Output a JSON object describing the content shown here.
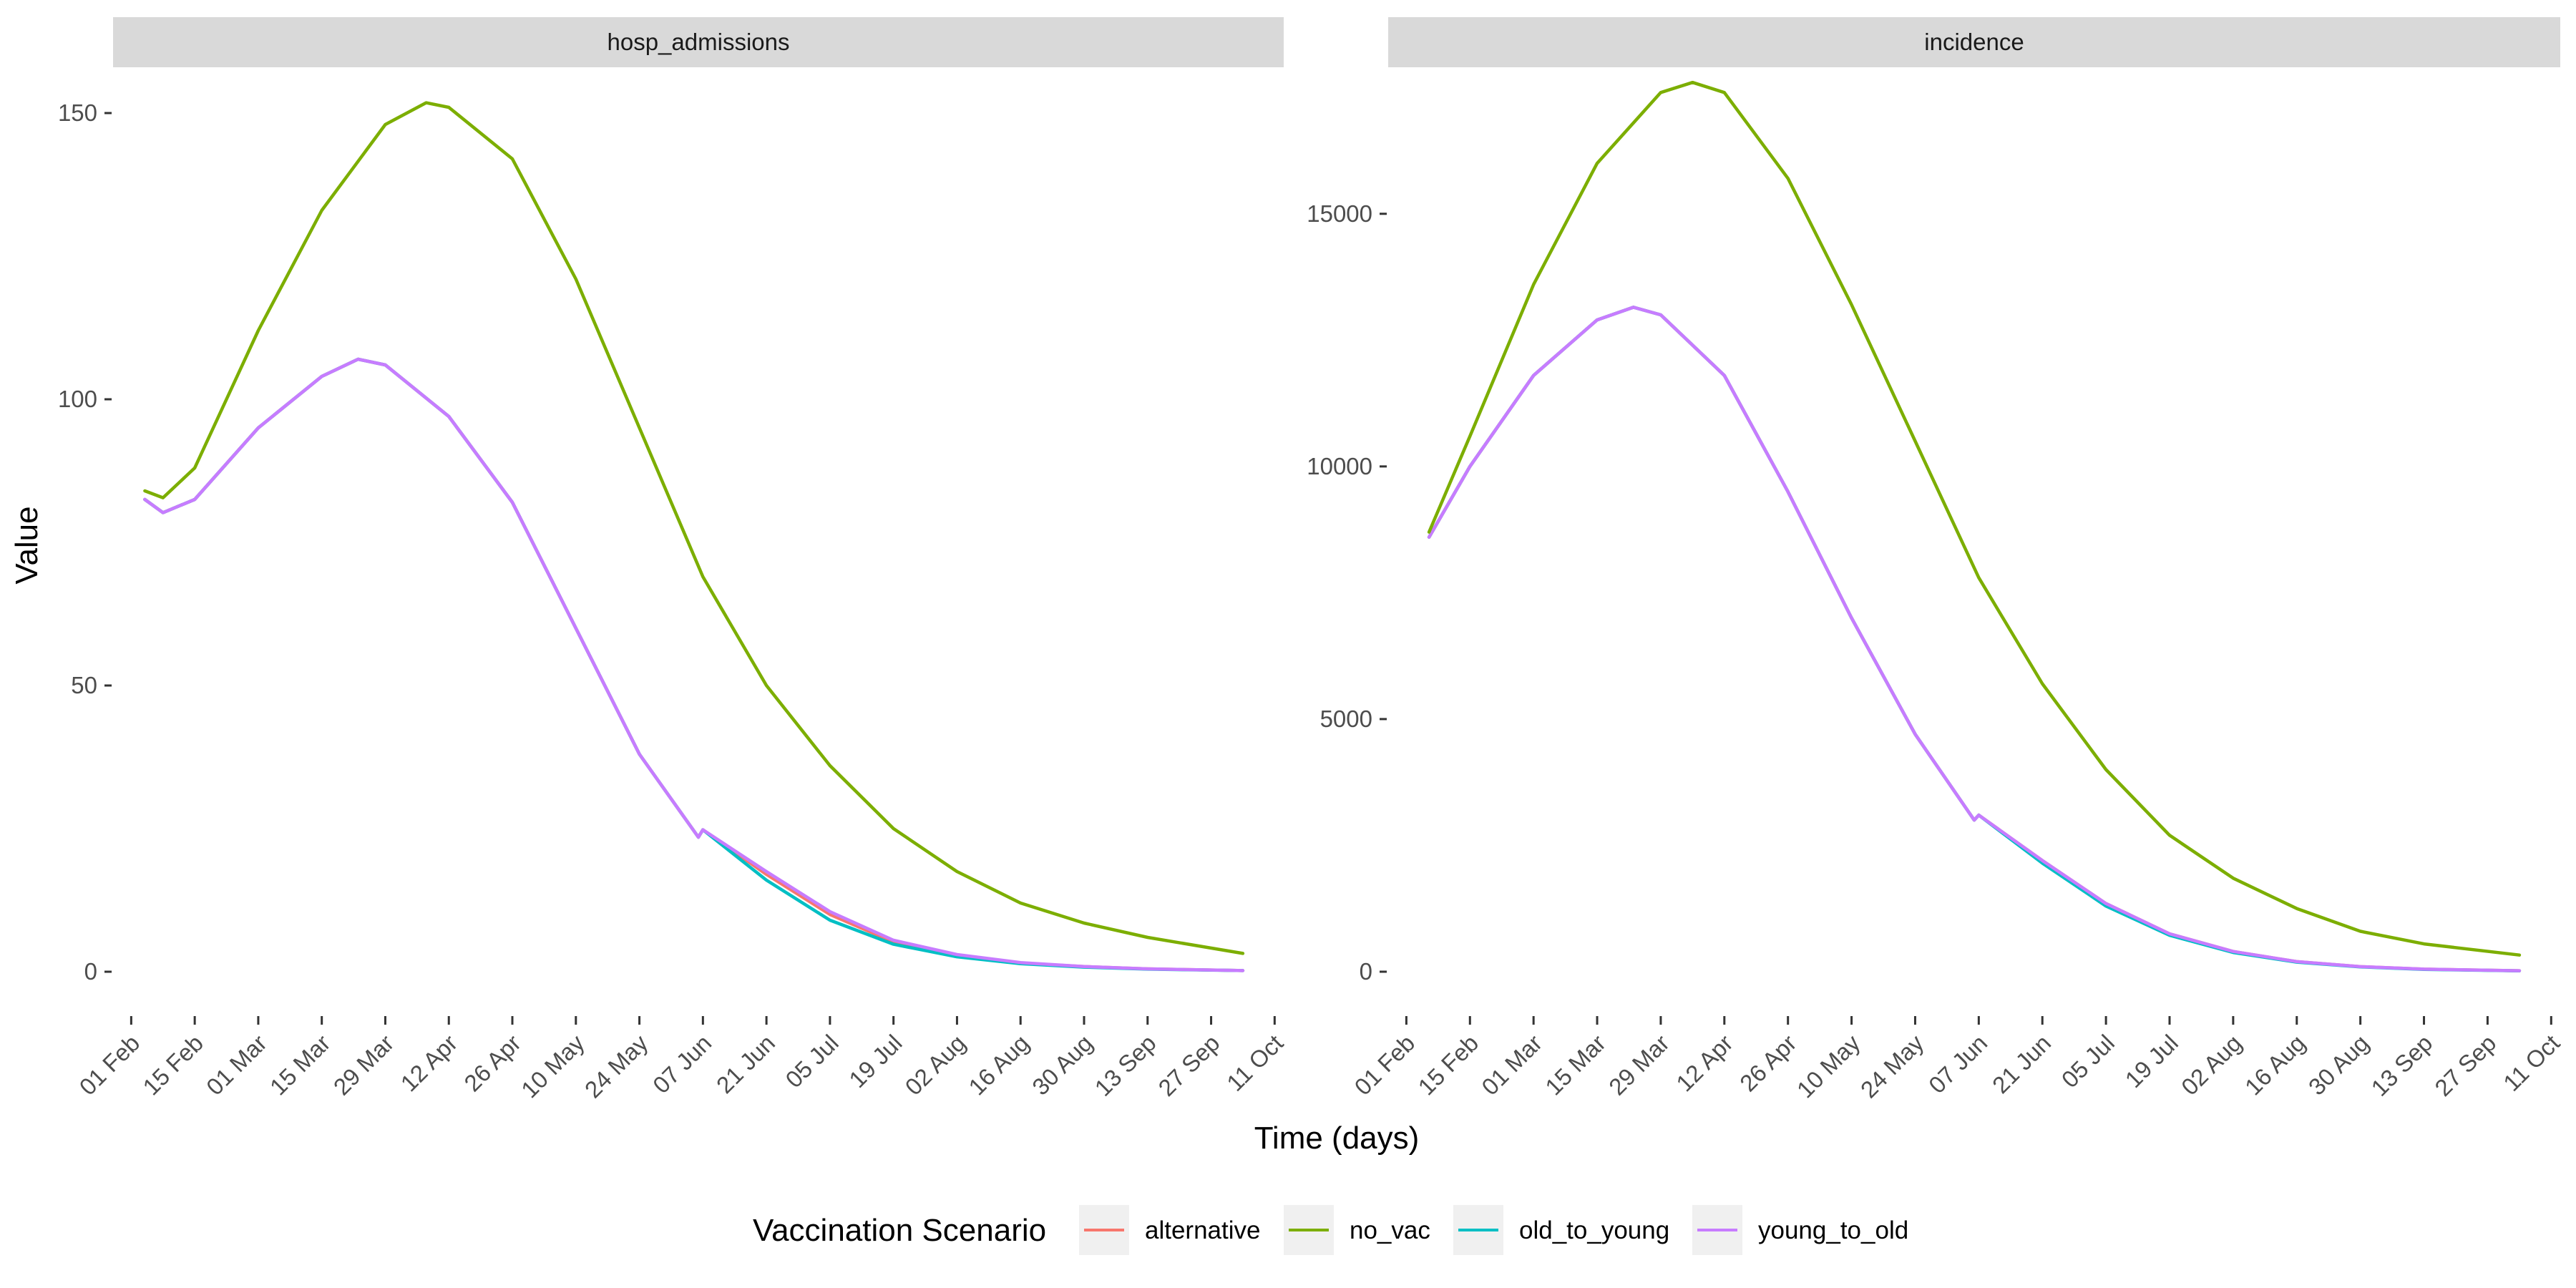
{
  "chart_data": {
    "type": "line",
    "xlabel": "Time (days)",
    "ylabel": "Value",
    "x_ticks": [
      "01 Feb",
      "15 Feb",
      "01 Mar",
      "15 Mar",
      "29 Mar",
      "12 Apr",
      "26 Apr",
      "10 May",
      "24 May",
      "07 Jun",
      "21 Jun",
      "05 Jul",
      "19 Jul",
      "02 Aug",
      "16 Aug",
      "30 Aug",
      "13 Sep",
      "27 Sep",
      "11 Oct"
    ],
    "xlim": [
      "2021-01-28",
      "2021-10-13"
    ],
    "legend": {
      "title": "Vaccination Scenario",
      "position": "bottom",
      "entries": [
        {
          "name": "alternative",
          "color": "#F8766D"
        },
        {
          "name": "no_vac",
          "color": "#7CAE00"
        },
        {
          "name": "old_to_young",
          "color": "#00BFC4"
        },
        {
          "name": "young_to_old",
          "color": "#C77CFF"
        }
      ]
    },
    "facets": [
      {
        "title": "hosp_admissions",
        "ylim": [
          -7.5,
          158
        ],
        "y_ticks": [
          0,
          50,
          100,
          150
        ],
        "series": [
          {
            "name": "alternative",
            "color": "#F8766D",
            "points": [
              [
                "2021-02-04",
                82.5
              ],
              [
                "2021-02-08",
                80.2
              ],
              [
                "2021-02-15",
                82.5
              ],
              [
                "2021-03-01",
                95
              ],
              [
                "2021-03-15",
                104
              ],
              [
                "2021-03-23",
                107
              ],
              [
                "2021-03-29",
                106
              ],
              [
                "2021-04-12",
                97
              ],
              [
                "2021-04-26",
                82
              ],
              [
                "2021-05-10",
                60
              ],
              [
                "2021-05-24",
                38
              ],
              [
                "2021-06-06",
                23.5
              ],
              [
                "2021-06-07",
                24.8
              ],
              [
                "2021-06-21",
                17
              ],
              [
                "2021-07-05",
                10
              ],
              [
                "2021-07-19",
                5.2
              ],
              [
                "2021-08-02",
                2.8
              ],
              [
                "2021-08-16",
                1.5
              ],
              [
                "2021-08-30",
                0.9
              ],
              [
                "2021-09-13",
                0.5
              ],
              [
                "2021-10-04",
                0.2
              ]
            ]
          },
          {
            "name": "old_to_young",
            "color": "#00BFC4",
            "points": [
              [
                "2021-02-04",
                82.5
              ],
              [
                "2021-02-08",
                80.2
              ],
              [
                "2021-02-15",
                82.5
              ],
              [
                "2021-03-01",
                95
              ],
              [
                "2021-03-15",
                104
              ],
              [
                "2021-03-23",
                107
              ],
              [
                "2021-03-29",
                106
              ],
              [
                "2021-04-12",
                97
              ],
              [
                "2021-04-26",
                82
              ],
              [
                "2021-05-10",
                60
              ],
              [
                "2021-05-24",
                38
              ],
              [
                "2021-06-06",
                23.5
              ],
              [
                "2021-06-07",
                24.8
              ],
              [
                "2021-06-21",
                16
              ],
              [
                "2021-07-05",
                9
              ],
              [
                "2021-07-19",
                4.8
              ],
              [
                "2021-08-02",
                2.6
              ],
              [
                "2021-08-16",
                1.4
              ],
              [
                "2021-08-30",
                0.8
              ],
              [
                "2021-09-13",
                0.45
              ],
              [
                "2021-10-04",
                0.2
              ]
            ]
          },
          {
            "name": "young_to_old",
            "color": "#C77CFF",
            "points": [
              [
                "2021-02-04",
                82.5
              ],
              [
                "2021-02-08",
                80.2
              ],
              [
                "2021-02-15",
                82.5
              ],
              [
                "2021-03-01",
                95
              ],
              [
                "2021-03-15",
                104
              ],
              [
                "2021-03-23",
                107
              ],
              [
                "2021-03-29",
                106
              ],
              [
                "2021-04-12",
                97
              ],
              [
                "2021-04-26",
                82
              ],
              [
                "2021-05-10",
                60
              ],
              [
                "2021-05-24",
                38
              ],
              [
                "2021-06-06",
                23.5
              ],
              [
                "2021-06-07",
                24.8
              ],
              [
                "2021-06-21",
                17.5
              ],
              [
                "2021-07-05",
                10.5
              ],
              [
                "2021-07-19",
                5.5
              ],
              [
                "2021-08-02",
                3
              ],
              [
                "2021-08-16",
                1.6
              ],
              [
                "2021-08-30",
                0.9
              ],
              [
                "2021-09-13",
                0.5
              ],
              [
                "2021-10-04",
                0.2
              ]
            ]
          },
          {
            "name": "no_vac",
            "color": "#7CAE00",
            "points": [
              [
                "2021-02-04",
                84
              ],
              [
                "2021-02-08",
                82.8
              ],
              [
                "2021-02-15",
                88
              ],
              [
                "2021-03-01",
                112
              ],
              [
                "2021-03-15",
                133
              ],
              [
                "2021-03-29",
                148
              ],
              [
                "2021-04-07",
                151.8
              ],
              [
                "2021-04-12",
                151
              ],
              [
                "2021-04-26",
                142
              ],
              [
                "2021-05-10",
                121
              ],
              [
                "2021-05-24",
                95
              ],
              [
                "2021-06-07",
                69
              ],
              [
                "2021-06-21",
                50
              ],
              [
                "2021-07-05",
                36
              ],
              [
                "2021-07-19",
                25
              ],
              [
                "2021-08-02",
                17.5
              ],
              [
                "2021-08-16",
                12
              ],
              [
                "2021-08-30",
                8.5
              ],
              [
                "2021-09-13",
                6
              ],
              [
                "2021-10-04",
                3.2
              ]
            ]
          }
        ]
      },
      {
        "title": "incidence",
        "ylim": [
          -850,
          17900
        ],
        "y_ticks": [
          0,
          5000,
          10000,
          15000
        ],
        "series": [
          {
            "name": "alternative",
            "color": "#F8766D",
            "points": [
              [
                "2021-02-06",
                8600
              ],
              [
                "2021-02-15",
                10000
              ],
              [
                "2021-03-01",
                11800
              ],
              [
                "2021-03-15",
                12900
              ],
              [
                "2021-03-23",
                13150
              ],
              [
                "2021-03-29",
                13000
              ],
              [
                "2021-04-12",
                11800
              ],
              [
                "2021-04-26",
                9500
              ],
              [
                "2021-05-10",
                7000
              ],
              [
                "2021-05-24",
                4700
              ],
              [
                "2021-06-06",
                3000
              ],
              [
                "2021-06-07",
                3100
              ],
              [
                "2021-06-21",
                2200
              ],
              [
                "2021-07-05",
                1350
              ],
              [
                "2021-07-19",
                750
              ],
              [
                "2021-08-02",
                400
              ],
              [
                "2021-08-16",
                200
              ],
              [
                "2021-08-30",
                100
              ],
              [
                "2021-09-13",
                50
              ],
              [
                "2021-10-04",
                20
              ]
            ]
          },
          {
            "name": "old_to_young",
            "color": "#00BFC4",
            "points": [
              [
                "2021-02-06",
                8600
              ],
              [
                "2021-02-15",
                10000
              ],
              [
                "2021-03-01",
                11800
              ],
              [
                "2021-03-15",
                12900
              ],
              [
                "2021-03-23",
                13150
              ],
              [
                "2021-03-29",
                13000
              ],
              [
                "2021-04-12",
                11800
              ],
              [
                "2021-04-26",
                9500
              ],
              [
                "2021-05-10",
                7000
              ],
              [
                "2021-05-24",
                4700
              ],
              [
                "2021-06-06",
                3000
              ],
              [
                "2021-06-07",
                3100
              ],
              [
                "2021-06-21",
                2150
              ],
              [
                "2021-07-05",
                1300
              ],
              [
                "2021-07-19",
                720
              ],
              [
                "2021-08-02",
                380
              ],
              [
                "2021-08-16",
                190
              ],
              [
                "2021-08-30",
                95
              ],
              [
                "2021-09-13",
                45
              ],
              [
                "2021-10-04",
                18
              ]
            ]
          },
          {
            "name": "young_to_old",
            "color": "#C77CFF",
            "points": [
              [
                "2021-02-06",
                8600
              ],
              [
                "2021-02-15",
                10000
              ],
              [
                "2021-03-01",
                11800
              ],
              [
                "2021-03-15",
                12900
              ],
              [
                "2021-03-23",
                13150
              ],
              [
                "2021-03-29",
                13000
              ],
              [
                "2021-04-12",
                11800
              ],
              [
                "2021-04-26",
                9500
              ],
              [
                "2021-05-10",
                7000
              ],
              [
                "2021-05-24",
                4700
              ],
              [
                "2021-06-06",
                3000
              ],
              [
                "2021-06-07",
                3100
              ],
              [
                "2021-06-21",
                2200
              ],
              [
                "2021-07-05",
                1350
              ],
              [
                "2021-07-19",
                750
              ],
              [
                "2021-08-02",
                400
              ],
              [
                "2021-08-16",
                200
              ],
              [
                "2021-08-30",
                100
              ],
              [
                "2021-09-13",
                50
              ],
              [
                "2021-10-04",
                20
              ]
            ]
          },
          {
            "name": "no_vac",
            "color": "#7CAE00",
            "points": [
              [
                "2021-02-06",
                8700
              ],
              [
                "2021-02-15",
                10600
              ],
              [
                "2021-03-01",
                13600
              ],
              [
                "2021-03-15",
                16000
              ],
              [
                "2021-03-29",
                17400
              ],
              [
                "2021-04-05",
                17600
              ],
              [
                "2021-04-12",
                17400
              ],
              [
                "2021-04-26",
                15700
              ],
              [
                "2021-05-10",
                13200
              ],
              [
                "2021-05-24",
                10500
              ],
              [
                "2021-06-07",
                7800
              ],
              [
                "2021-06-21",
                5700
              ],
              [
                "2021-07-05",
                4000
              ],
              [
                "2021-07-19",
                2700
              ],
              [
                "2021-08-02",
                1850
              ],
              [
                "2021-08-16",
                1250
              ],
              [
                "2021-08-30",
                800
              ],
              [
                "2021-09-13",
                550
              ],
              [
                "2021-10-04",
                330
              ]
            ]
          }
        ]
      }
    ]
  }
}
